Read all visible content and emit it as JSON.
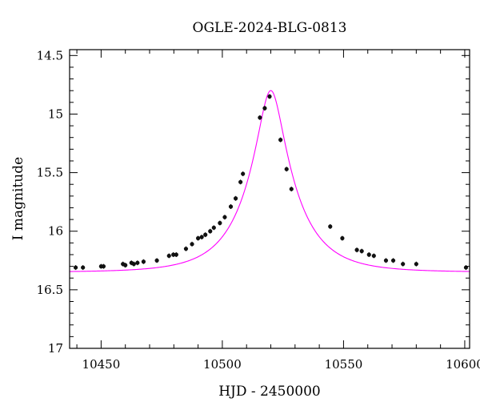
{
  "chart_data": {
    "type": "scatter",
    "title": "OGLE-2024-BLG-0813",
    "xlabel": "HJD - 2450000",
    "ylabel": "I magnitude",
    "xlim": [
      10437,
      10602
    ],
    "ylim": [
      17.0,
      14.45
    ],
    "y_inverted": true,
    "grid": false,
    "legend": "none",
    "x_ticks": [
      10450,
      10500,
      10550,
      10600
    ],
    "x_tick_labels": [
      "10450",
      "10500",
      "10550",
      "10600"
    ],
    "y_ticks": [
      14.5,
      15,
      15.5,
      16,
      16.5,
      17
    ],
    "y_tick_labels": [
      "14.5",
      "15",
      "15.5",
      "16",
      "16.5",
      "17"
    ],
    "series": [
      {
        "kind": "points",
        "color": "#111111",
        "x": [
          10439.5,
          10442.5,
          10450,
          10451,
          10459,
          10460,
          10462.5,
          10463.5,
          10465,
          10467.5,
          10473,
          10478,
          10479.8,
          10481,
          10485,
          10487.5,
          10490,
          10491.5,
          10493,
          10495,
          10496.5,
          10499,
          10501,
          10503.5,
          10505.5,
          10507.5,
          10508.5,
          10515.5,
          10517.5,
          10519.5,
          10524,
          10526.5,
          10528.5,
          10544.5,
          10549.5,
          10555.5,
          10557.5,
          10560.5,
          10562.5,
          10567.5,
          10570.5,
          10574.5,
          10580,
          10600.5
        ],
        "y": [
          16.31,
          16.31,
          16.3,
          16.3,
          16.28,
          16.29,
          16.27,
          16.28,
          16.27,
          16.26,
          16.25,
          16.21,
          16.2,
          16.2,
          16.15,
          16.11,
          16.06,
          16.05,
          16.03,
          16.0,
          15.97,
          15.93,
          15.88,
          15.79,
          15.72,
          15.58,
          15.51,
          15.03,
          14.95,
          14.85,
          15.22,
          15.47,
          15.64,
          15.96,
          16.06,
          16.16,
          16.17,
          16.2,
          16.21,
          16.25,
          16.25,
          16.28,
          16.28,
          16.31
        ]
      },
      {
        "kind": "line",
        "color": "#ff00ff",
        "model": "point-lens",
        "t0": 10520,
        "tE": 20,
        "u0": 0.245,
        "baseline_mag": 16.35
      }
    ]
  }
}
